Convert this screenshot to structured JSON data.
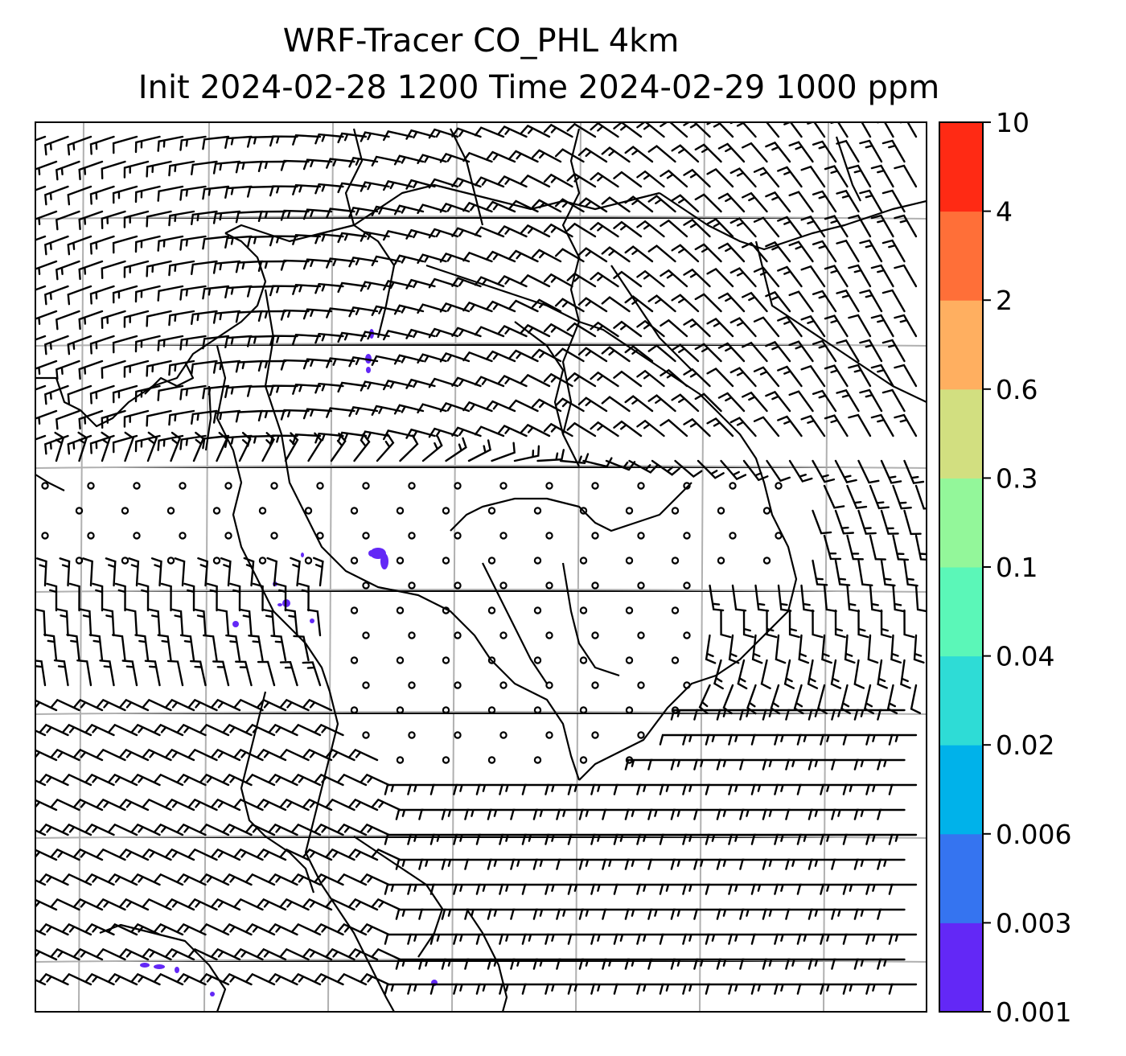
{
  "figure": {
    "title_line1": "WRF-Tracer CO_PHL 4km",
    "title_line2": "Init 2024-02-28 1200 Time 2024-02-29 1000 ppm"
  },
  "colorbar": {
    "levels": [
      "0.001",
      "0.003",
      "0.006",
      "0.02",
      "0.04",
      "0.1",
      "0.3",
      "0.6",
      "2",
      "4",
      "10"
    ],
    "colors": [
      "#6328f6",
      "#3574f0",
      "#00b2ea",
      "#2edcd6",
      "#5bf7b8",
      "#93f79a",
      "#d2df80",
      "#ffaf60",
      "#ff6f38",
      "#ff2a14"
    ]
  },
  "colors": {
    "barb": "#000000",
    "coastline": "#000000",
    "gridline": "#b0b0b0",
    "tracer": "#6328f6"
  },
  "map": {
    "gridlines": "on",
    "field": "wind barbs over tracer concentration"
  }
}
